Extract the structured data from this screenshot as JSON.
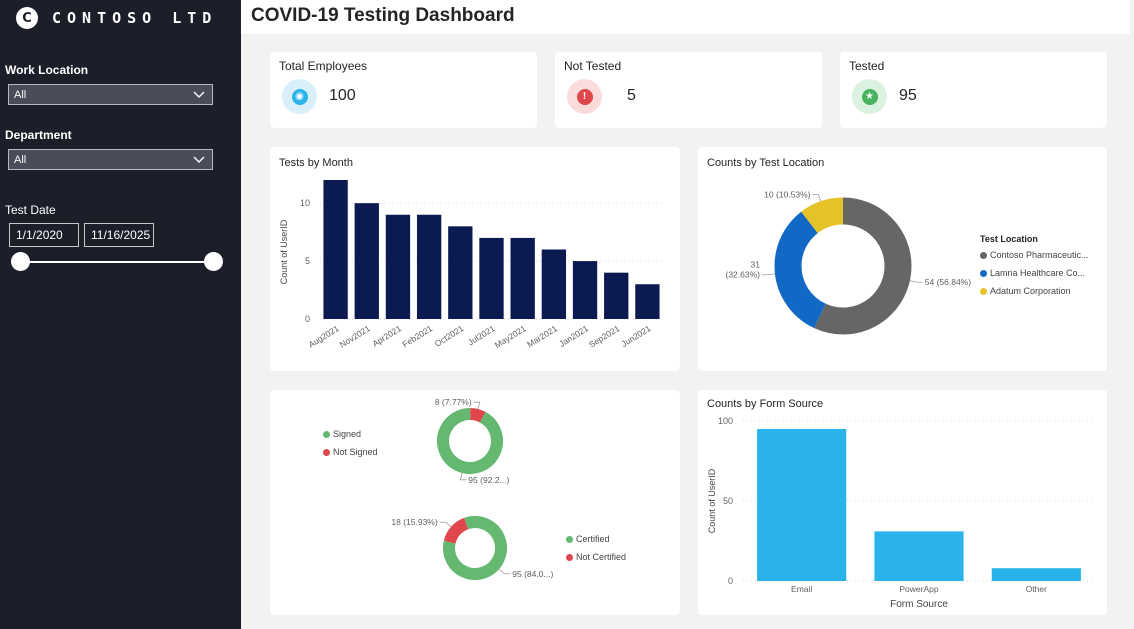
{
  "sidebar": {
    "logo_mark": "C",
    "logo_text": "CONTOSO LTD",
    "work_location": {
      "label": "Work Location",
      "value": "All"
    },
    "department": {
      "label": "Department",
      "value": "All"
    },
    "test_date": {
      "label": "Test Date",
      "start": "1/1/2020",
      "end": "11/16/2025"
    }
  },
  "header": {
    "title": "COVID-19 Testing Dashboard"
  },
  "kpis": [
    {
      "label": "Total Employees",
      "value": "100",
      "color": "#2bb3e8"
    },
    {
      "label": "Not Tested",
      "value": "5",
      "color": "#e0474c"
    },
    {
      "label": "Tested",
      "value": "95",
      "color": "#48b25e"
    }
  ],
  "chart_data": [
    {
      "type": "bar",
      "title": "Tests by Month",
      "ylabel": "Count of UserID",
      "xlabel": "",
      "categories": [
        "Aug2021",
        "Nov2021",
        "Apr2021",
        "Feb2021",
        "Oct2021",
        "Jul2021",
        "May2021",
        "Mar2021",
        "Jan2021",
        "Sep2021",
        "Jun2021"
      ],
      "values": [
        12,
        10,
        9,
        9,
        8,
        7,
        7,
        6,
        5,
        4,
        3
      ],
      "ylim": [
        0,
        12
      ],
      "yticks": [
        0,
        5,
        10
      ],
      "color": "#0c1a52"
    },
    {
      "type": "pie",
      "title": "Counts by Test Location",
      "legend_title": "Test Location",
      "categories": [
        "Contoso Pharmaceutic...",
        "Lamna Healthcare Co...",
        "Adatum Corporation"
      ],
      "values": [
        54,
        31,
        10
      ],
      "labels": [
        "54 (56.84%)",
        "31 (32.63%)",
        "10 (10.53%)"
      ],
      "colors": [
        "#666666",
        "#1269c5",
        "#e6c229"
      ]
    },
    {
      "type": "pie",
      "title": "",
      "categories": [
        "Signed",
        "Not Signed"
      ],
      "values": [
        95,
        8
      ],
      "labels": [
        "95 (92.2...)",
        "8 (7.77%)"
      ],
      "colors": [
        "#64b870",
        "#e0474c"
      ]
    },
    {
      "type": "pie",
      "title": "",
      "categories": [
        "Certified",
        "Not Certified"
      ],
      "values": [
        95,
        18
      ],
      "labels": [
        "95 (84.0...)",
        "18 (15.93%)"
      ],
      "colors": [
        "#64b870",
        "#e0474c"
      ]
    },
    {
      "type": "bar",
      "title": "Counts by Form Source",
      "ylabel": "Count of UserID",
      "xlabel": "Form Source",
      "categories": [
        "Email",
        "PowerApp",
        "Other"
      ],
      "values": [
        95,
        31,
        8
      ],
      "ylim": [
        0,
        100
      ],
      "yticks": [
        0,
        50,
        100
      ],
      "color": "#2ab3ea"
    }
  ]
}
